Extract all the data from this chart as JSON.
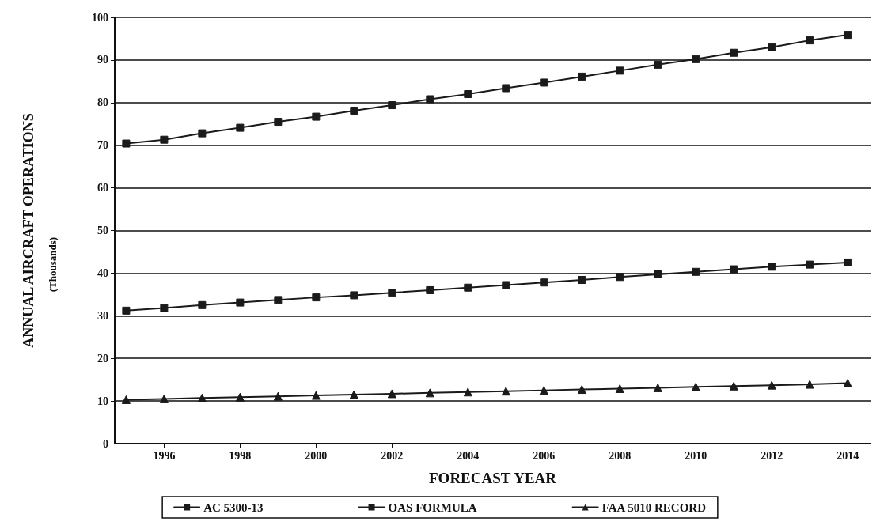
{
  "chart_data": {
    "type": "line",
    "xlabel": "FORECAST YEAR",
    "ylabel": "ANNUAL AIRCRAFT OPERATIONS",
    "annotations": [
      "(Thousands)"
    ],
    "x": [
      1995,
      1996,
      1997,
      1998,
      1999,
      2000,
      2001,
      2002,
      2003,
      2004,
      2005,
      2006,
      2007,
      2008,
      2009,
      2010,
      2011,
      2012,
      2013,
      2014
    ],
    "xlim": [
      1994.7,
      2014.6
    ],
    "xticks": [
      1996,
      1998,
      2000,
      2002,
      2004,
      2006,
      2008,
      2010,
      2012,
      2014
    ],
    "ylim": [
      0,
      100
    ],
    "yticks": [
      0,
      10,
      20,
      30,
      40,
      50,
      60,
      70,
      80,
      90,
      100
    ],
    "grid": "y",
    "legend": "bottom",
    "line_style": "solid",
    "series": [
      {
        "name": "AC 5300-13",
        "color": "#1a1a1a",
        "marker": "square",
        "values": [
          70.4,
          71.3,
          72.8,
          74.1,
          75.5,
          76.7,
          78.1,
          79.4,
          80.8,
          82.0,
          83.4,
          84.7,
          86.1,
          87.5,
          88.9,
          90.2,
          91.7,
          93.0,
          94.6,
          95.9
        ]
      },
      {
        "name": "OAS FORMULA",
        "color": "#1a1a1a",
        "marker": "square",
        "values": [
          31.2,
          31.8,
          32.5,
          33.1,
          33.7,
          34.3,
          34.8,
          35.4,
          36.0,
          36.6,
          37.2,
          37.8,
          38.4,
          39.1,
          39.7,
          40.3,
          40.9,
          41.5,
          42.0,
          42.5
        ]
      },
      {
        "name": "FAA 5010 RECORD",
        "color": "#1a1a1a",
        "marker": "triangle",
        "values": [
          10.3,
          10.5,
          10.7,
          10.9,
          11.1,
          11.3,
          11.5,
          11.7,
          11.9,
          12.1,
          12.3,
          12.5,
          12.7,
          12.9,
          13.1,
          13.3,
          13.5,
          13.7,
          13.9,
          14.2
        ]
      }
    ]
  }
}
